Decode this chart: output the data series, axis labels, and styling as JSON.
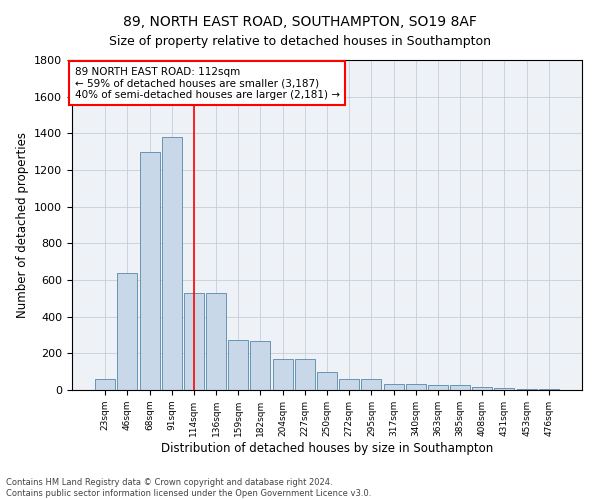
{
  "title1": "89, NORTH EAST ROAD, SOUTHAMPTON, SO19 8AF",
  "title2": "Size of property relative to detached houses in Southampton",
  "xlabel": "Distribution of detached houses by size in Southampton",
  "ylabel": "Number of detached properties",
  "footnote": "Contains HM Land Registry data © Crown copyright and database right 2024.\nContains public sector information licensed under the Open Government Licence v3.0.",
  "bar_labels": [
    "23sqm",
    "46sqm",
    "68sqm",
    "91sqm",
    "114sqm",
    "136sqm",
    "159sqm",
    "182sqm",
    "204sqm",
    "227sqm",
    "250sqm",
    "272sqm",
    "295sqm",
    "317sqm",
    "340sqm",
    "363sqm",
    "385sqm",
    "408sqm",
    "431sqm",
    "453sqm",
    "476sqm"
  ],
  "bar_values": [
    60,
    640,
    1300,
    1380,
    530,
    530,
    275,
    270,
    170,
    170,
    100,
    60,
    60,
    35,
    35,
    30,
    30,
    15,
    10,
    5,
    5
  ],
  "bar_color": "#c8d8e8",
  "bar_edge_color": "#5588aa",
  "vline_x": 4,
  "vline_color": "red",
  "annotation_text": "89 NORTH EAST ROAD: 112sqm\n← 59% of detached houses are smaller (3,187)\n40% of semi-detached houses are larger (2,181) →",
  "annotation_box_color": "white",
  "annotation_box_edge": "red",
  "ylim": [
    0,
    1800
  ],
  "yticks": [
    0,
    200,
    400,
    600,
    800,
    1000,
    1200,
    1400,
    1600,
    1800
  ],
  "bg_color": "#eef2f7",
  "grid_color": "#c5cdd8",
  "title1_fontsize": 10,
  "title2_fontsize": 9,
  "xlabel_fontsize": 8.5,
  "ylabel_fontsize": 8.5,
  "figsize": [
    6.0,
    5.0
  ],
  "dpi": 100
}
